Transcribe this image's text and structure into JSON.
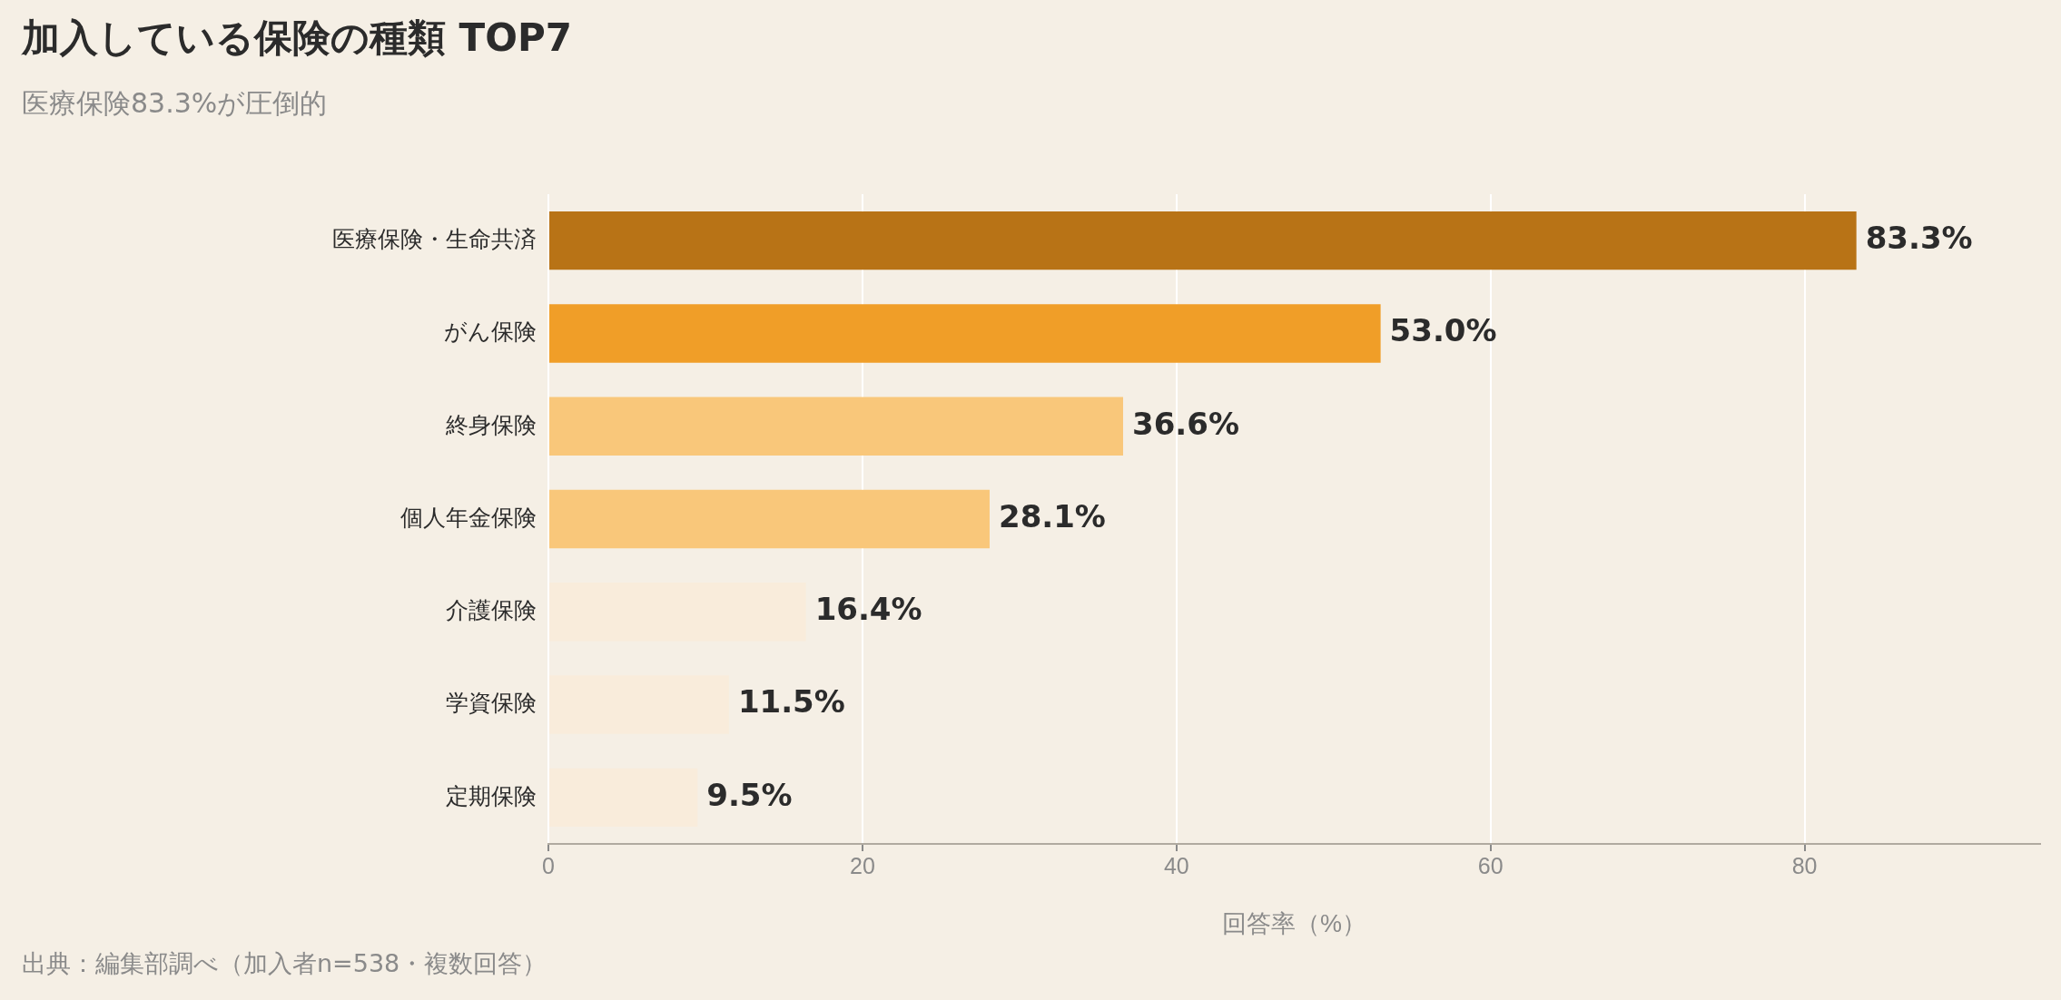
{
  "chart_data": {
    "type": "bar",
    "orientation": "horizontal",
    "title": "加入している保険の種類 TOP7",
    "subtitle": "医療保険83.3%が圧倒的",
    "xlabel": "回答率（%）",
    "categories": [
      "医療保険・生命共済",
      "がん保険",
      "終身保険",
      "個人年金保険",
      "介護保険",
      "学資保険",
      "定期保険"
    ],
    "values": [
      83.3,
      53.0,
      36.6,
      28.1,
      16.4,
      11.5,
      9.5
    ],
    "colors": [
      "#b87316",
      "#f09e28",
      "#f9c77a",
      "#f9c77a",
      "#f9ecdb",
      "#f9ecdb",
      "#f9ecdb"
    ],
    "value_labels": [
      "83.3%",
      "53.0%",
      "36.6%",
      "28.1%",
      "16.4%",
      "11.5%",
      "9.5%"
    ],
    "xlim": [
      0,
      95
    ],
    "xticks": [
      0,
      20,
      40,
      60,
      80
    ],
    "grid": "x",
    "legend": false,
    "annotations": [
      "出典：編集部調べ（加入者n=538・複数回答）"
    ]
  }
}
